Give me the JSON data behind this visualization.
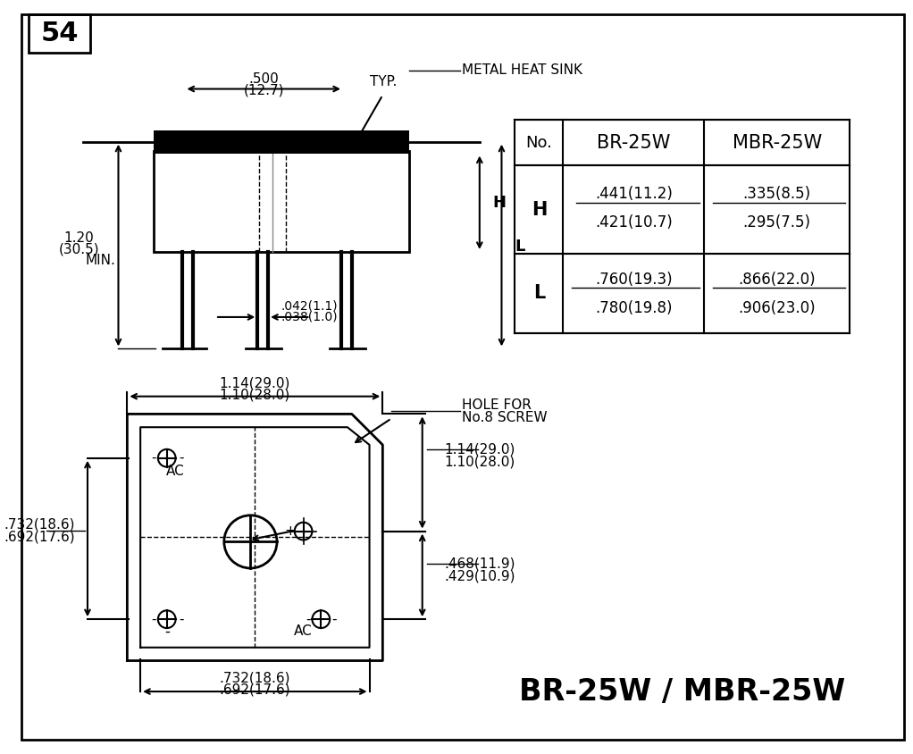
{
  "page_num": "54",
  "bg_color": "#ffffff",
  "line_color": "#000000",
  "title": "BR-25W / MBR-25W",
  "table": {
    "headers": [
      "No.",
      "BR-25W",
      "MBR-25W"
    ],
    "rows": [
      {
        "label": "H",
        "br": ".441(11.2)\n.421(10.7)",
        "mbr": ".335(8.5)\n.295(7.5)"
      },
      {
        "label": "L",
        "br": ".760(19.3)\n.780(19.8)",
        "mbr": ".866(22.0)\n.906(23.0)"
      }
    ]
  },
  "top_dims": {
    "width_dim": ".500\n(12.7)",
    "typ_label": "TYP.",
    "heatsink_label": "METAL HEAT SINK",
    "lead_width": ".042(1.1)\n.038(1.0)",
    "lead_height": "1.20\n(30.5)",
    "lead_height_suffix": "MIN.",
    "H_label": "H",
    "L_label": "L"
  },
  "bottom_dims": {
    "width1": "1.14(29.0)",
    "width2": "1.10(28.0)",
    "height1": "1.14(29.0)",
    "height2": "1.10(28.0)",
    "hole_label": "HOLE FOR\nNo.8 SCREW",
    "vert_dim1": ".468(11.9)",
    "vert_dim2": ".429(10.9)",
    "side_dim1": ".732(18.6)",
    "side_dim2": ".692(17.6)",
    "bot_dim1": ".732(18.6)",
    "bot_dim2": ".692(17.6)"
  }
}
